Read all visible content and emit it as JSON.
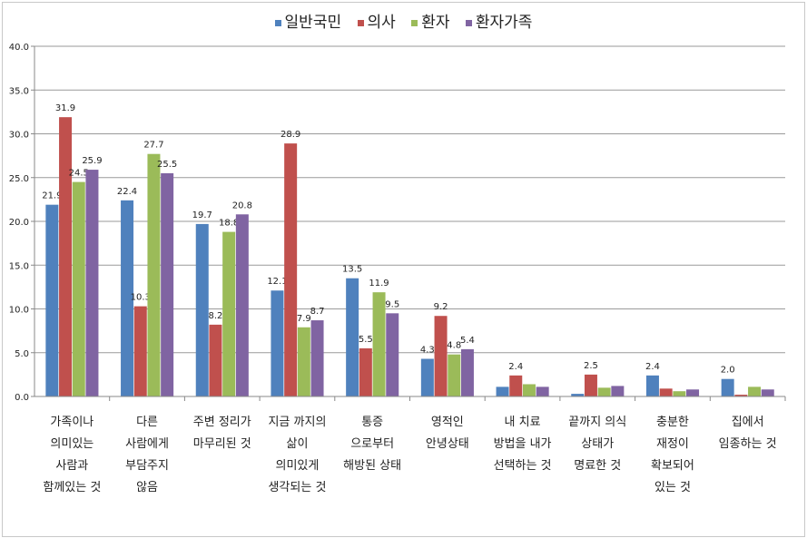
{
  "chart_data": {
    "type": "bar",
    "title": "",
    "xlabel": "",
    "ylabel": "",
    "ylim": [
      0,
      40
    ],
    "yticks": [
      "0.0",
      "5.0",
      "10.0",
      "15.0",
      "20.0",
      "25.0",
      "30.0",
      "35.0",
      "40.0"
    ],
    "legend_position": "top",
    "categories": [
      [
        "가족이나",
        "의미있는",
        "사람과",
        "함께있는 것"
      ],
      [
        "다른",
        "사람에게",
        "부담주지",
        "않음"
      ],
      [
        "주변 정리가",
        "마무리된 것"
      ],
      [
        "지금 까지의",
        "삶이",
        "의미있게",
        "생각되는 것"
      ],
      [
        "통증",
        "으로부터",
        "해방된 상태"
      ],
      [
        "영적인",
        "안녕상태"
      ],
      [
        "내 치료",
        "방법을 내가",
        "선택하는 것"
      ],
      [
        "끝까지 의식",
        "상태가",
        "명료한 것"
      ],
      [
        "충분한",
        "재정이",
        "확보되어",
        "있는 것"
      ],
      [
        "집에서",
        "임종하는 것"
      ]
    ],
    "series": [
      {
        "name": "일반국민",
        "color": "#4f81bd",
        "values": [
          21.9,
          22.4,
          19.7,
          12.1,
          13.5,
          4.3,
          1.1,
          0.3,
          2.4,
          2.0
        ]
      },
      {
        "name": "의사",
        "color": "#c0504d",
        "values": [
          31.9,
          10.3,
          8.2,
          28.9,
          5.5,
          9.2,
          2.4,
          2.5,
          0.9,
          0.2
        ]
      },
      {
        "name": "환자",
        "color": "#9bbb59",
        "values": [
          24.5,
          27.7,
          18.8,
          7.9,
          11.9,
          4.8,
          1.4,
          1.0,
          0.6,
          1.1
        ]
      },
      {
        "name": "환자가족",
        "color": "#8064a2",
        "values": [
          25.9,
          25.5,
          20.8,
          8.7,
          9.5,
          5.4,
          1.1,
          1.2,
          0.8,
          0.8
        ]
      }
    ],
    "data_labels": [
      [
        "21.9",
        "31.9",
        "24.5",
        "25.9"
      ],
      [
        "22.4",
        "10.3",
        "27.7",
        "25.5"
      ],
      [
        "19.7",
        "8.2",
        "18.8",
        "20.8"
      ],
      [
        "12.1",
        "28.9",
        "7.9",
        "8.7"
      ],
      [
        "13.5",
        "5.5",
        "11.9",
        "9.5"
      ],
      [
        "4.3",
        "9.2",
        "4.8",
        "5.4"
      ],
      [
        null,
        "2.4",
        null,
        null
      ],
      [
        null,
        "2.5",
        null,
        null
      ],
      [
        "2.4",
        null,
        null,
        null
      ],
      [
        "2.0",
        null,
        null,
        null
      ]
    ]
  }
}
